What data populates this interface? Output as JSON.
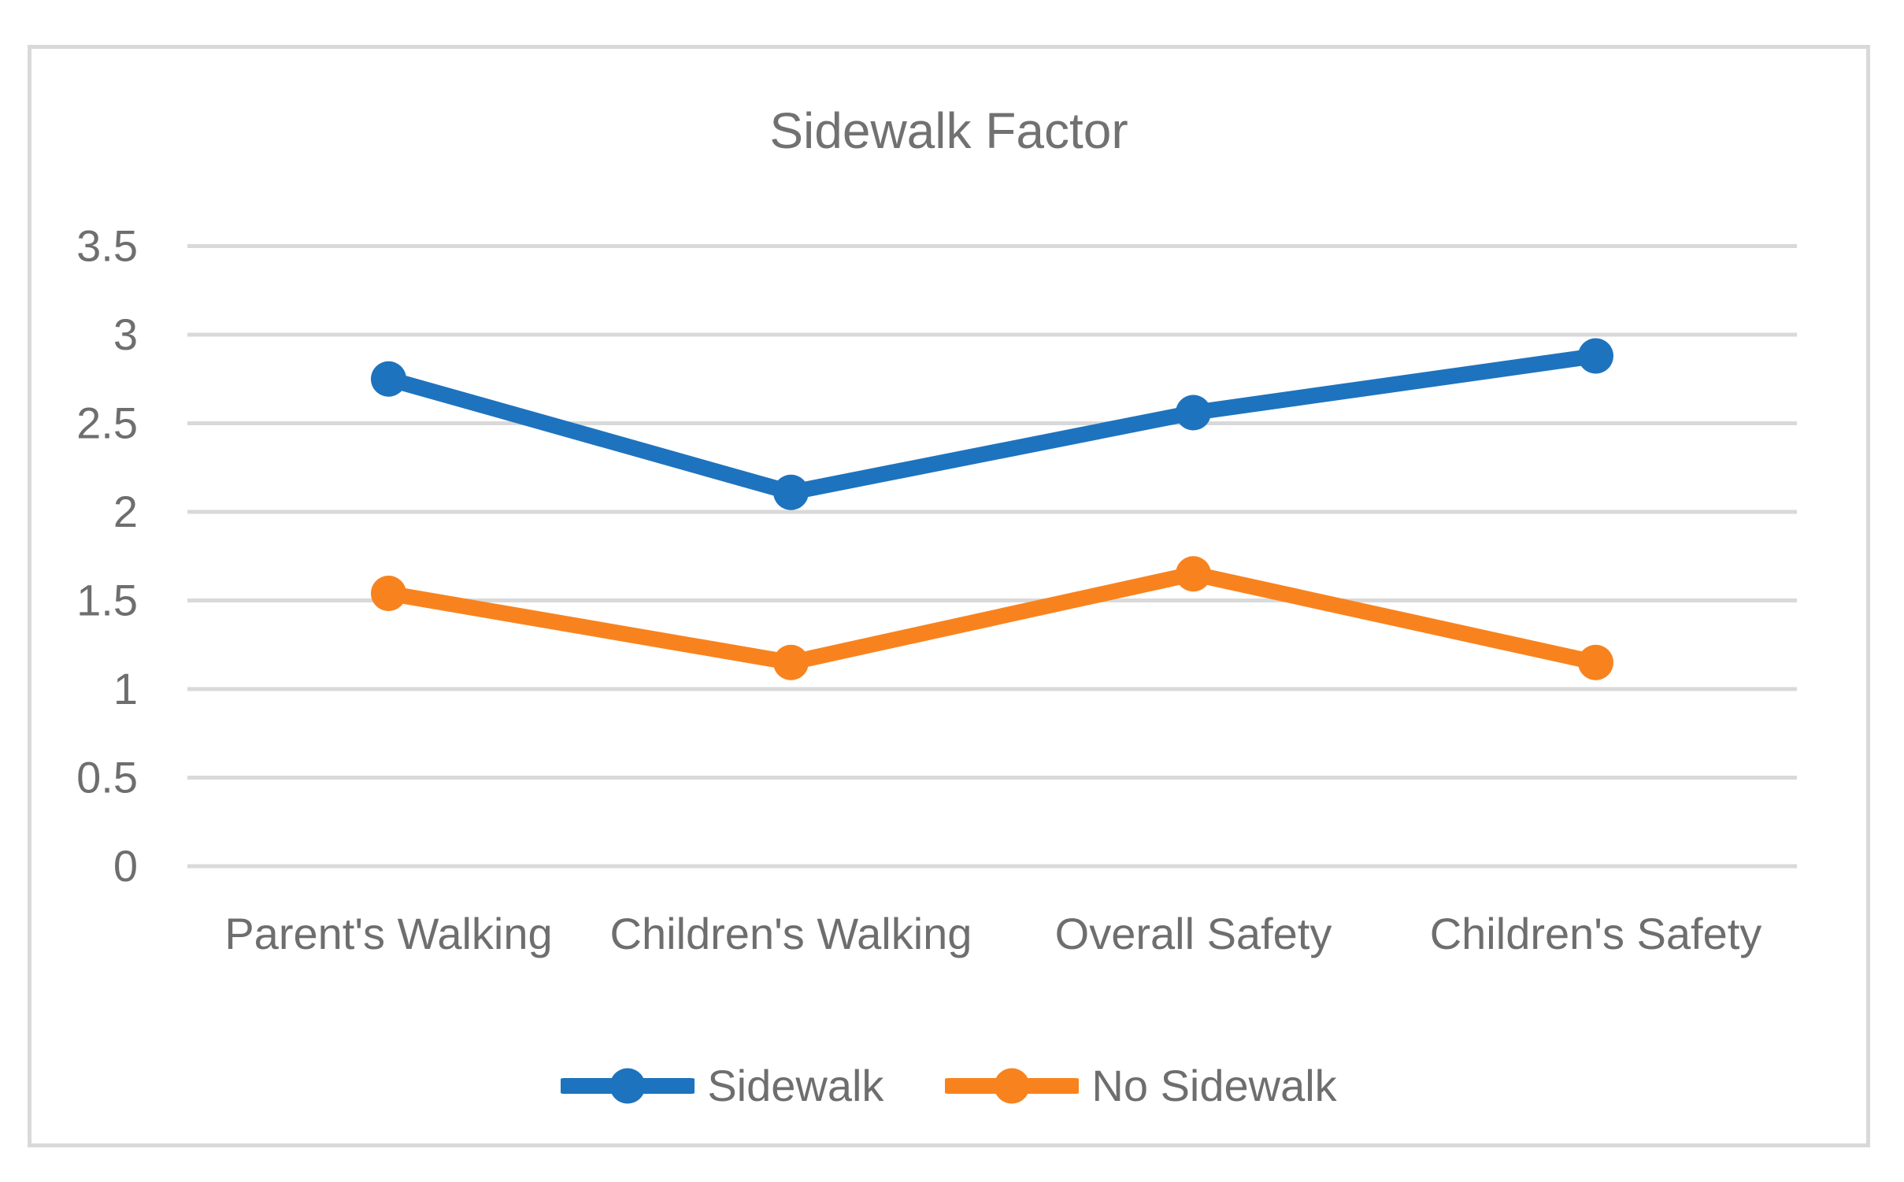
{
  "figure": {
    "background_color": "#ffffff",
    "frame_border_color": "#d9d9d9",
    "gridline_color": "#d9d9d9",
    "text_color": "#6e6e6e",
    "title_color": "#717171"
  },
  "chart_data": {
    "type": "line",
    "title": "Sidewalk Factor",
    "xlabel": "",
    "ylabel": "",
    "categories": [
      "Parent's Walking",
      "Children's Walking",
      "Overall Safety",
      "Children's Safety"
    ],
    "series": [
      {
        "name": "Sidewalk",
        "color": "#1e73be",
        "marker": "circle",
        "values": [
          2.75,
          2.11,
          2.56,
          2.88
        ]
      },
      {
        "name": "No Sidewalk",
        "color": "#f8831e",
        "marker": "circle",
        "values": [
          1.54,
          1.15,
          1.65,
          1.15
        ]
      }
    ],
    "ylim": [
      0,
      3.5
    ],
    "ytick_values": [
      0,
      0.5,
      1,
      1.5,
      2,
      2.5,
      3,
      3.5
    ],
    "ytick_labels": [
      "0",
      "0.5",
      "1",
      "1.5",
      "2",
      "2.5",
      "3",
      "3.5"
    ],
    "grid": "horizontal",
    "legend_position": "bottom"
  }
}
